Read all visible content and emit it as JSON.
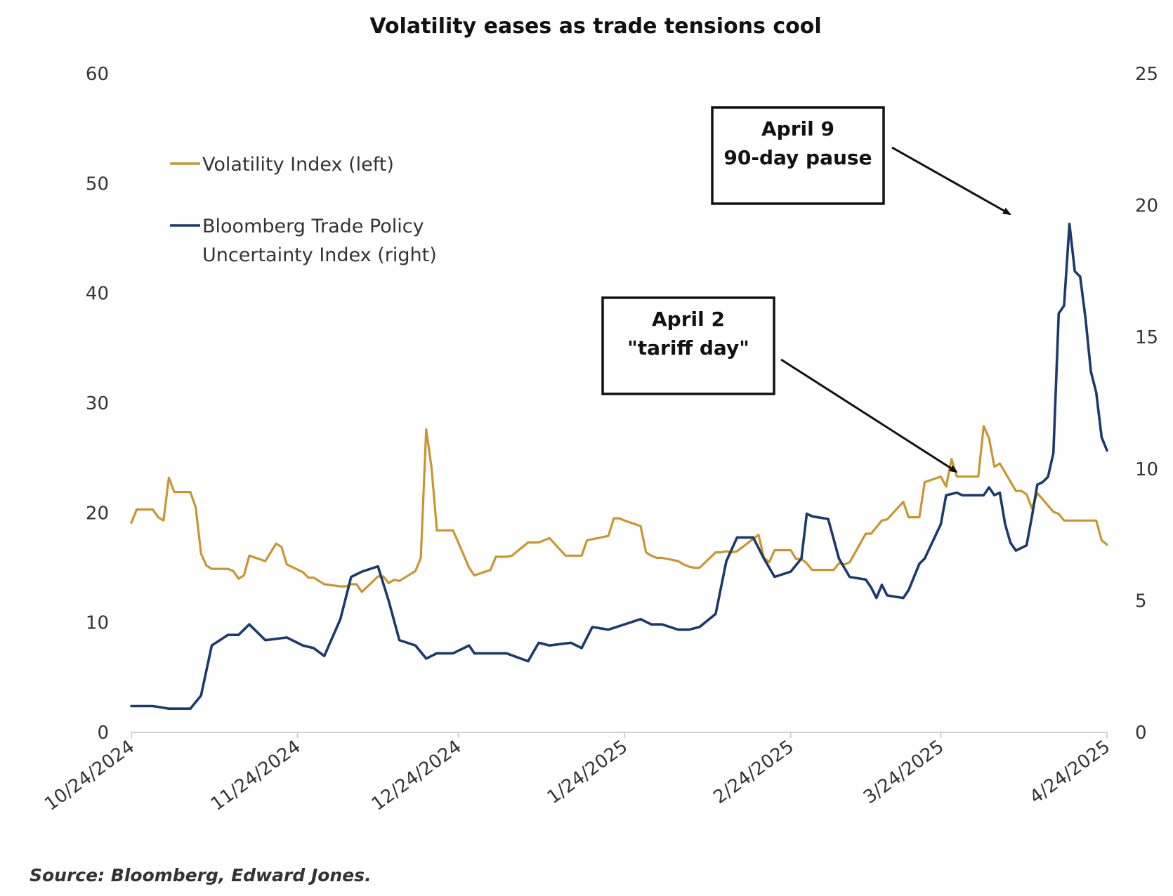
{
  "chart_data": {
    "type": "line",
    "title": "Volatility eases as trade tensions cool",
    "x_ticks": [
      "10/24/2024",
      "11/24/2024",
      "12/24/2024",
      "1/24/2025",
      "2/24/2025",
      "3/24/2025",
      "4/24/2025"
    ],
    "y_left": {
      "range": [
        0,
        60
      ],
      "ticks": [
        "0",
        "10",
        "20",
        "30",
        "40",
        "50",
        "60"
      ]
    },
    "y_right": {
      "range": [
        0,
        25
      ],
      "ticks": [
        "0",
        "5",
        "10",
        "15",
        "20",
        "25"
      ]
    },
    "grid": false,
    "legend_position": "top-left",
    "series": [
      {
        "name": "Volatility Index (left)",
        "axis": "left",
        "color": "#C9962E",
        "points": [
          [
            "10/24/2024",
            19.1
          ],
          [
            "10/25/2024",
            20.3
          ],
          [
            "10/28/2024",
            20.3
          ],
          [
            "10/29/2024",
            19.6
          ],
          [
            "10/30/2024",
            19.3
          ],
          [
            "10/31/2024",
            23.2
          ],
          [
            "11/1/2024",
            21.9
          ],
          [
            "11/4/2024",
            21.9
          ],
          [
            "11/5/2024",
            20.5
          ],
          [
            "11/6/2024",
            16.3
          ],
          [
            "11/7/2024",
            15.2
          ],
          [
            "11/8/2024",
            14.9
          ],
          [
            "11/11/2024",
            14.9
          ],
          [
            "11/12/2024",
            14.7
          ],
          [
            "11/13/2024",
            14.0
          ],
          [
            "11/14/2024",
            14.3
          ],
          [
            "11/15/2024",
            16.1
          ],
          [
            "11/18/2024",
            15.6
          ],
          [
            "11/19/2024",
            16.4
          ],
          [
            "11/20/2024",
            17.2
          ],
          [
            "11/21/2024",
            16.9
          ],
          [
            "11/22/2024",
            15.3
          ],
          [
            "11/25/2024",
            14.6
          ],
          [
            "11/26/2024",
            14.1
          ],
          [
            "11/27/2024",
            14.1
          ],
          [
            "11/29/2024",
            13.5
          ],
          [
            "12/2/2024",
            13.3
          ],
          [
            "12/3/2024",
            13.3
          ],
          [
            "12/4/2024",
            13.5
          ],
          [
            "12/5/2024",
            13.5
          ],
          [
            "12/6/2024",
            12.8
          ],
          [
            "12/9/2024",
            14.2
          ],
          [
            "12/10/2024",
            14.2
          ],
          [
            "12/11/2024",
            13.6
          ],
          [
            "12/12/2024",
            13.9
          ],
          [
            "12/13/2024",
            13.8
          ],
          [
            "12/16/2024",
            14.7
          ],
          [
            "12/17/2024",
            15.9
          ],
          [
            "12/18/2024",
            27.6
          ],
          [
            "12/19/2024",
            24.1
          ],
          [
            "12/20/2024",
            18.4
          ],
          [
            "12/23/2024",
            18.4
          ],
          [
            "12/24/2024",
            17.3
          ],
          [
            "12/26/2024",
            15.0
          ],
          [
            "12/27/2024",
            14.3
          ],
          [
            "12/30/2024",
            14.8
          ],
          [
            "12/31/2024",
            16.0
          ],
          [
            "1/2/2025",
            16.0
          ],
          [
            "1/3/2025",
            16.1
          ],
          [
            "1/6/2025",
            17.3
          ],
          [
            "1/7/2025",
            17.3
          ],
          [
            "1/8/2025",
            17.3
          ],
          [
            "1/10/2025",
            17.7
          ],
          [
            "1/13/2025",
            16.1
          ],
          [
            "1/14/2025",
            16.1
          ],
          [
            "1/15/2025",
            16.1
          ],
          [
            "1/16/2025",
            16.1
          ],
          [
            "1/17/2025",
            17.5
          ],
          [
            "1/21/2025",
            17.9
          ],
          [
            "1/22/2025",
            19.5
          ],
          [
            "1/23/2025",
            19.5
          ],
          [
            "1/24/2025",
            19.3
          ],
          [
            "1/27/2025",
            18.8
          ],
          [
            "1/28/2025",
            16.4
          ],
          [
            "1/29/2025",
            16.1
          ],
          [
            "1/30/2025",
            15.9
          ],
          [
            "1/31/2025",
            15.9
          ],
          [
            "2/3/2025",
            15.6
          ],
          [
            "2/4/2025",
            15.3
          ],
          [
            "2/5/2025",
            15.1
          ],
          [
            "2/6/2025",
            15.0
          ],
          [
            "2/7/2025",
            15.0
          ],
          [
            "2/10/2025",
            16.4
          ],
          [
            "2/11/2025",
            16.4
          ],
          [
            "2/12/2025",
            16.5
          ],
          [
            "2/13/2025",
            16.4
          ],
          [
            "2/14/2025",
            16.5
          ],
          [
            "2/18/2025",
            18.0
          ],
          [
            "2/19/2025",
            15.9
          ],
          [
            "2/20/2025",
            15.5
          ],
          [
            "2/21/2025",
            16.6
          ],
          [
            "2/24/2025",
            16.6
          ],
          [
            "2/25/2025",
            15.8
          ],
          [
            "2/26/2025",
            15.8
          ],
          [
            "2/27/2025",
            15.4
          ],
          [
            "2/28/2025",
            14.8
          ],
          [
            "3/3/2025",
            14.8
          ],
          [
            "3/4/2025",
            14.8
          ],
          [
            "3/5/2025",
            15.4
          ],
          [
            "3/6/2025",
            15.3
          ],
          [
            "3/7/2025",
            15.5
          ],
          [
            "3/10/2025",
            18.1
          ],
          [
            "3/11/2025",
            18.1
          ],
          [
            "3/12/2025",
            18.7
          ],
          [
            "3/13/2025",
            19.3
          ],
          [
            "3/14/2025",
            19.4
          ],
          [
            "3/17/2025",
            21.0
          ],
          [
            "3/18/2025",
            19.6
          ],
          [
            "3/19/2025",
            19.6
          ],
          [
            "3/20/2025",
            19.6
          ],
          [
            "3/21/2025",
            22.8
          ],
          [
            "3/24/2025",
            23.3
          ],
          [
            "3/25/2025",
            22.4
          ],
          [
            "3/26/2025",
            24.9
          ],
          [
            "3/27/2025",
            23.3
          ],
          [
            "3/28/2025",
            23.3
          ],
          [
            "3/31/2025",
            23.3
          ],
          [
            "4/1/2025",
            27.9
          ],
          [
            "4/2/2025",
            26.8
          ],
          [
            "4/3/2025",
            24.2
          ],
          [
            "4/4/2025",
            24.5
          ],
          [
            "4/7/2025",
            22.0
          ],
          [
            "4/8/2025",
            22.0
          ],
          [
            "4/9/2025",
            21.7
          ],
          [
            "4/10/2025",
            20.4
          ],
          [
            "4/11/2025",
            21.8
          ],
          [
            "4/14/2025",
            20.1
          ],
          [
            "4/15/2025",
            19.9
          ],
          [
            "4/16/2025",
            19.3
          ],
          [
            "4/17/2025",
            19.3
          ],
          [
            "4/22/2025",
            19.3
          ],
          [
            "4/23/2025",
            17.5
          ],
          [
            "4/24/2025",
            17.1
          ]
        ]
      },
      {
        "name": "Bloomberg Trade Policy Uncertainty Index (right)",
        "axis": "right",
        "color": "#1B3A6B",
        "points": [
          [
            "10/24/2024",
            1.0
          ],
          [
            "10/28/2024",
            1.0
          ],
          [
            "10/31/2024",
            0.9
          ],
          [
            "11/4/2024",
            0.9
          ],
          [
            "11/6/2024",
            1.4
          ],
          [
            "11/8/2024",
            3.3
          ],
          [
            "11/11/2024",
            3.7
          ],
          [
            "11/13/2024",
            3.7
          ],
          [
            "11/15/2024",
            4.1
          ],
          [
            "11/18/2024",
            3.5
          ],
          [
            "11/22/2024",
            3.6
          ],
          [
            "11/25/2024",
            3.3
          ],
          [
            "11/27/2024",
            3.2
          ],
          [
            "11/29/2024",
            2.9
          ],
          [
            "12/2/2024",
            4.3
          ],
          [
            "12/4/2024",
            5.9
          ],
          [
            "12/6/2024",
            6.1
          ],
          [
            "12/9/2024",
            6.3
          ],
          [
            "12/11/2024",
            5.0
          ],
          [
            "12/13/2024",
            3.5
          ],
          [
            "12/16/2024",
            3.3
          ],
          [
            "12/18/2024",
            2.8
          ],
          [
            "12/20/2024",
            3.0
          ],
          [
            "12/23/2024",
            3.0
          ],
          [
            "12/26/2024",
            3.3
          ],
          [
            "12/27/2024",
            3.0
          ],
          [
            "12/31/2024",
            3.0
          ],
          [
            "1/2/2025",
            3.0
          ],
          [
            "1/6/2025",
            2.7
          ],
          [
            "1/8/2025",
            3.4
          ],
          [
            "1/10/2025",
            3.3
          ],
          [
            "1/14/2025",
            3.4
          ],
          [
            "1/16/2025",
            3.2
          ],
          [
            "1/18/2025",
            4.0
          ],
          [
            "1/21/2025",
            3.9
          ],
          [
            "1/24/2025",
            4.1
          ],
          [
            "1/27/2025",
            4.3
          ],
          [
            "1/29/2025",
            4.1
          ],
          [
            "1/31/2025",
            4.1
          ],
          [
            "2/3/2025",
            3.9
          ],
          [
            "2/5/2025",
            3.9
          ],
          [
            "2/7/2025",
            4.0
          ],
          [
            "2/10/2025",
            4.5
          ],
          [
            "2/12/2025",
            6.5
          ],
          [
            "2/14/2025",
            7.4
          ],
          [
            "2/17/2025",
            7.4
          ],
          [
            "2/19/2025",
            6.6
          ],
          [
            "2/21/2025",
            5.9
          ],
          [
            "2/24/2025",
            6.1
          ],
          [
            "2/26/2025",
            6.6
          ],
          [
            "2/27/2025",
            8.3
          ],
          [
            "2/28/2025",
            8.2
          ],
          [
            "3/3/2025",
            8.1
          ],
          [
            "3/5/2025",
            6.6
          ],
          [
            "3/7/2025",
            5.9
          ],
          [
            "3/10/2025",
            5.8
          ],
          [
            "3/11/2025",
            5.5
          ],
          [
            "3/12/2025",
            5.1
          ],
          [
            "3/13/2025",
            5.6
          ],
          [
            "3/14/2025",
            5.2
          ],
          [
            "3/17/2025",
            5.1
          ],
          [
            "3/18/2025",
            5.4
          ],
          [
            "3/20/2025",
            6.4
          ],
          [
            "3/21/2025",
            6.6
          ],
          [
            "3/24/2025",
            7.9
          ],
          [
            "3/25/2025",
            9.0
          ],
          [
            "3/27/2025",
            9.1
          ],
          [
            "3/28/2025",
            9.0
          ],
          [
            "3/31/2025",
            9.0
          ],
          [
            "4/1/2025",
            9.0
          ],
          [
            "4/2/2025",
            9.3
          ],
          [
            "4/3/2025",
            9.0
          ],
          [
            "4/4/2025",
            9.1
          ],
          [
            "4/5/2025",
            7.9
          ],
          [
            "4/6/2025",
            7.2
          ],
          [
            "4/7/2025",
            6.9
          ],
          [
            "4/8/2025",
            7.0
          ],
          [
            "4/9/2025",
            7.1
          ],
          [
            "4/10/2025",
            8.2
          ],
          [
            "4/11/2025",
            9.4
          ],
          [
            "4/12/2025",
            9.5
          ],
          [
            "4/13/2025",
            9.7
          ],
          [
            "4/14/2025",
            10.6
          ],
          [
            "4/15/2025",
            15.9
          ],
          [
            "4/16/2025",
            16.2
          ],
          [
            "4/17/2025",
            19.3
          ],
          [
            "4/18/2025",
            17.5
          ],
          [
            "4/19/2025",
            17.3
          ],
          [
            "4/20/2025",
            15.7
          ],
          [
            "4/21/2025",
            13.7
          ],
          [
            "4/22/2025",
            12.9
          ],
          [
            "4/23/2025",
            11.2
          ],
          [
            "4/24/2025",
            10.7
          ]
        ]
      }
    ],
    "annotations": [
      {
        "lines": [
          "April 9",
          "90-day pause"
        ]
      },
      {
        "lines": [
          "April 2",
          "\"tariff day\""
        ]
      }
    ]
  },
  "source": "Source: Bloomberg, Edward Jones."
}
